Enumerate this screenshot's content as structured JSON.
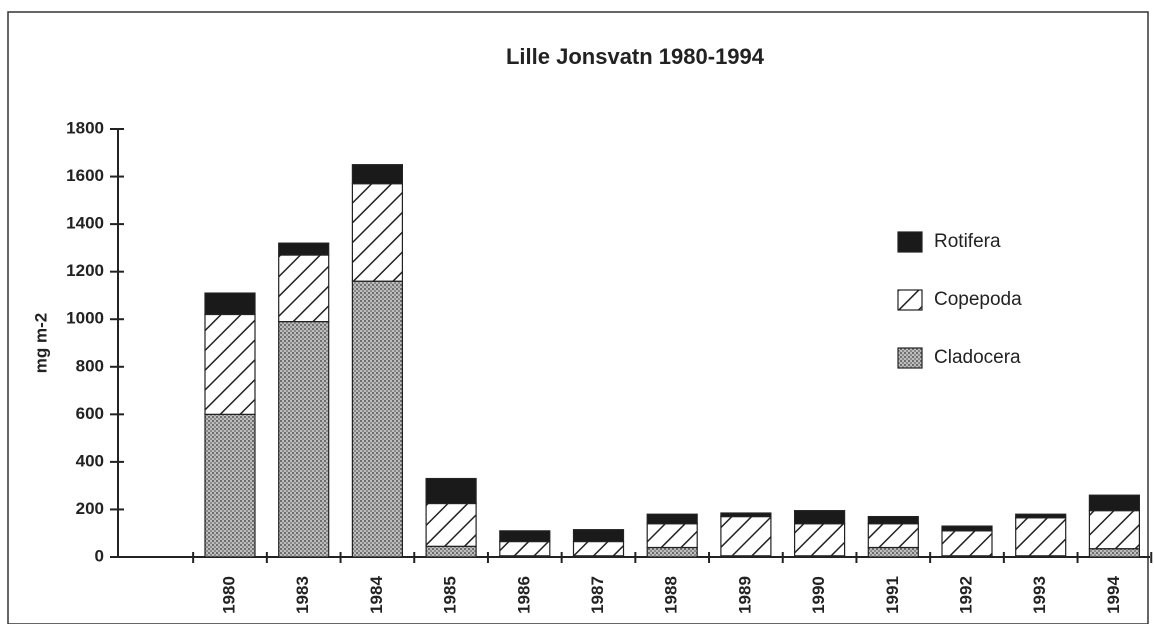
{
  "chart_data": {
    "type": "bar",
    "stacked": true,
    "title": "Lille Jonsvatn 1980-1994",
    "y_label": "mg m-2",
    "categories": [
      "1980",
      "1983",
      "1984",
      "1985",
      "1986",
      "1987",
      "1988",
      "1989",
      "1990",
      "1991",
      "1992",
      "1993",
      "1994"
    ],
    "series": [
      {
        "name": "Cladocera",
        "color": "#9a9a9a",
        "pattern": "dots",
        "values": [
          600,
          990,
          1160,
          45,
          5,
          5,
          40,
          5,
          5,
          40,
          5,
          5,
          35
        ]
      },
      {
        "name": "Copepoda",
        "color": "#222222",
        "pattern": "hatch",
        "values": [
          420,
          280,
          410,
          180,
          60,
          60,
          100,
          165,
          135,
          100,
          105,
          160,
          160
        ]
      },
      {
        "name": "Rotifera",
        "color": "#1a1a1a",
        "pattern": "solid",
        "values": [
          90,
          50,
          80,
          105,
          45,
          50,
          40,
          15,
          55,
          30,
          20,
          15,
          65
        ]
      }
    ],
    "ylim": [
      0,
      1800
    ],
    "yticks": [
      0,
      200,
      400,
      600,
      800,
      1000,
      1200,
      1400,
      1600,
      1800
    ],
    "grid": false,
    "legend": "right"
  }
}
